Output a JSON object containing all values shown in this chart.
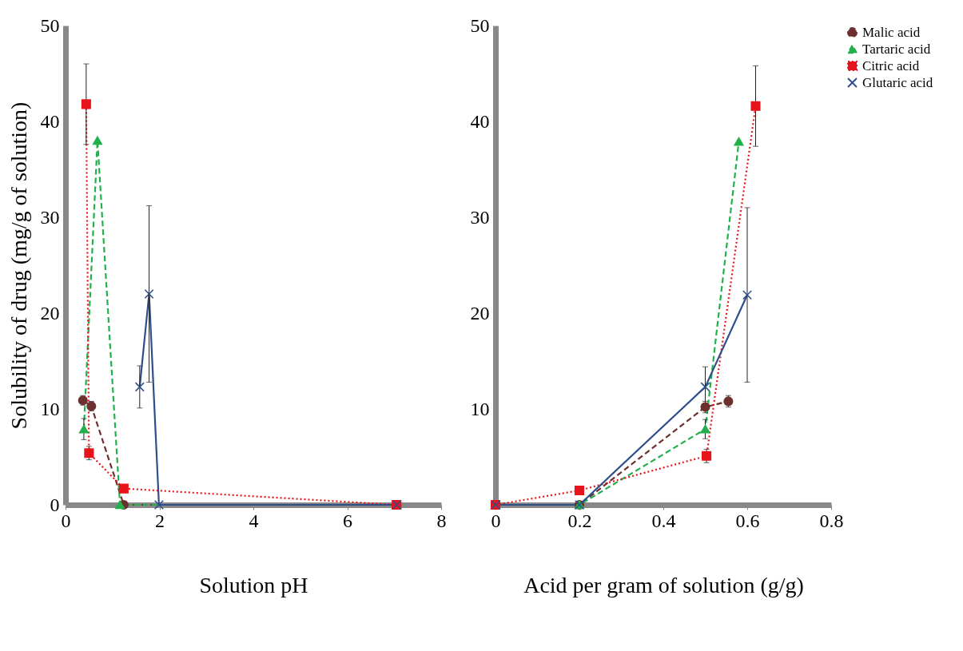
{
  "chart_data": [
    {
      "type": "line",
      "xlabel": "Solution pH",
      "ylabel": "Solubility of drug (mg/g of solution)",
      "xlim": [
        0,
        8
      ],
      "xticks": [
        0,
        2,
        4,
        6,
        8
      ],
      "ylim": [
        0,
        50
      ],
      "yticks": [
        0,
        10,
        20,
        30,
        40,
        50
      ],
      "grid": false,
      "series": [
        {
          "color": "#6e2f2f",
          "marker": "circle",
          "line_style": "dashed",
          "x": [
            0.37,
            0.55,
            1.24,
            7.05
          ],
          "values": [
            10.9,
            10.3,
            0,
            0
          ],
          "errors": [
            0.5,
            0.5,
            null,
            null
          ]
        },
        {
          "color": "#21b04b",
          "marker": "triangle",
          "line_style": "dashed",
          "x": [
            0.39,
            0.68,
            1.16,
            7.05
          ],
          "values": [
            7.9,
            38,
            0,
            0
          ],
          "errors": [
            1.1,
            null,
            null,
            null
          ]
        },
        {
          "color": "#e8141b",
          "marker": "square",
          "line_style": "dotted",
          "x": [
            0.44,
            0.5,
            1.24,
            7.05
          ],
          "values": [
            41.8,
            5.4,
            1.7,
            0
          ],
          "errors": [
            4.2,
            0.7,
            null,
            null
          ]
        },
        {
          "color": "#2e4f8c",
          "marker": "cross",
          "line_style": "solid",
          "x": [
            1.58,
            1.78,
            1.99,
            7.05
          ],
          "values": [
            12.3,
            22,
            0,
            0
          ],
          "errors": [
            2.2,
            9.2,
            null,
            null
          ]
        }
      ]
    },
    {
      "type": "line",
      "xlabel": "Acid per gram of solution (g/g)",
      "xlim": [
        0,
        0.8
      ],
      "xticks": [
        0,
        0.2,
        0.4,
        0.6,
        0.8
      ],
      "ylim": [
        0,
        50
      ],
      "yticks": [
        10,
        20,
        30,
        40,
        50
      ],
      "grid": false,
      "legend": "right",
      "series": [
        {
          "name": "Malic acid",
          "color": "#6e2f2f",
          "marker": "circle",
          "line_style": "dashed",
          "x": [
            0,
            0.2,
            0.5,
            0.555
          ],
          "values": [
            0,
            0,
            10.2,
            10.8
          ],
          "errors": [
            null,
            null,
            0.6,
            0.6
          ]
        },
        {
          "name": "Tartaric acid",
          "color": "#21b04b",
          "marker": "triangle",
          "line_style": "dashed",
          "x": [
            0,
            0.2,
            0.5,
            0.58
          ],
          "values": [
            0,
            0,
            7.9,
            37.9
          ],
          "errors": [
            null,
            null,
            1,
            null
          ]
        },
        {
          "name": "Citric acid",
          "color": "#e8141b",
          "marker": "square",
          "line_style": "dotted",
          "x": [
            0,
            0.2,
            0.503,
            0.62
          ],
          "values": [
            0,
            1.5,
            5.1,
            41.6
          ],
          "errors": [
            null,
            null,
            0.7,
            4.2
          ]
        },
        {
          "name": "Glutaric acid",
          "color": "#2e4f8c",
          "marker": "cross",
          "line_style": "solid",
          "x": [
            0,
            0.2,
            0.5,
            0.6
          ],
          "values": [
            0,
            0,
            12.3,
            21.9
          ],
          "errors": [
            null,
            null,
            2.1,
            9.1
          ]
        }
      ]
    }
  ]
}
